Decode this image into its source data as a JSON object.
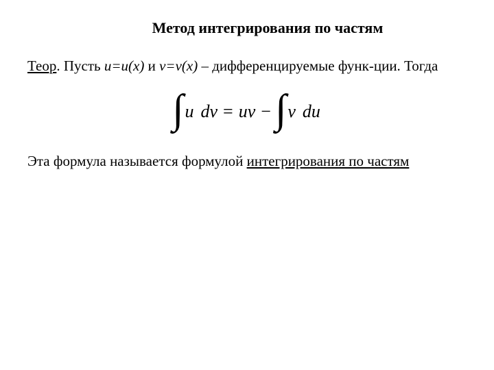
{
  "title": "Метод интегрирования по частям",
  "theorem": {
    "label": "Теор",
    "text1": ". Пусть ",
    "u_expr": "u=u(x)",
    "text2": " и ",
    "v_expr": "v=v(x)",
    "text3": " – дифференцируемые функ-ции. Тогда"
  },
  "formula": {
    "u": "u",
    "dv": "dv",
    "eq": "=",
    "uv": "uv",
    "minus": "−",
    "v": "v",
    "du": "du"
  },
  "conclusion": {
    "text1": "Эта формула называется формулой  ",
    "link": "интегрирования по частям"
  },
  "styling": {
    "background_color": "#ffffff",
    "text_color": "#000000",
    "title_fontsize": 22,
    "body_fontsize": 21,
    "formula_fontsize": 26,
    "integral_fontsize": 60,
    "font_family": "Times New Roman"
  }
}
